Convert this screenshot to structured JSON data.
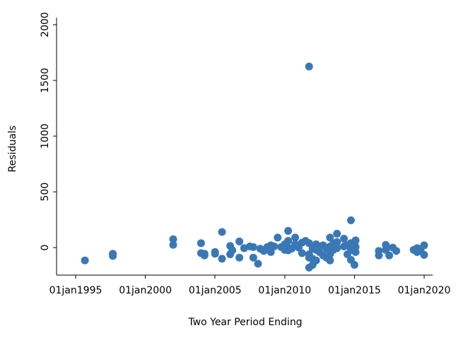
{
  "chart_data": {
    "type": "scatter",
    "xlabel": "Two Year Period Ending",
    "ylabel": "Residuals",
    "x_is_date": true,
    "xlim": [
      "1994-01-01",
      "2020-06-01"
    ],
    "ylim": [
      -250,
      2100
    ],
    "x_ticks": [
      {
        "date": "1995-01-01",
        "label": "01jan1995"
      },
      {
        "date": "2000-01-01",
        "label": "01jan2000"
      },
      {
        "date": "2005-01-01",
        "label": "01jan2005"
      },
      {
        "date": "2010-01-01",
        "label": "01jan2010"
      },
      {
        "date": "2015-01-01",
        "label": "01jan2015"
      },
      {
        "date": "2020-01-01",
        "label": "01jan2020"
      }
    ],
    "y_ticks": [
      {
        "value": 0,
        "label": "0"
      },
      {
        "value": 500,
        "label": "500"
      },
      {
        "value": 1000,
        "label": "1000"
      },
      {
        "value": 1500,
        "label": "1500"
      },
      {
        "value": 2000,
        "label": "2000"
      }
    ],
    "grid": false,
    "legend": "none",
    "marker_color": "#3a78b5",
    "points": [
      {
        "x": "1995-09-01",
        "y": -115
      },
      {
        "x": "1997-09-01",
        "y": -55
      },
      {
        "x": "1997-09-01",
        "y": -75
      },
      {
        "x": "2001-12-31",
        "y": 75
      },
      {
        "x": "2001-12-31",
        "y": 25
      },
      {
        "x": "2003-12-31",
        "y": 40
      },
      {
        "x": "2003-12-31",
        "y": -50
      },
      {
        "x": "2004-03-31",
        "y": -70
      },
      {
        "x": "2004-03-31",
        "y": -55
      },
      {
        "x": "2004-12-31",
        "y": -40
      },
      {
        "x": "2004-12-31",
        "y": -55
      },
      {
        "x": "2005-06-30",
        "y": 140
      },
      {
        "x": "2005-06-30",
        "y": -100
      },
      {
        "x": "2006-01-31",
        "y": 15
      },
      {
        "x": "2006-01-31",
        "y": -60
      },
      {
        "x": "2006-03-31",
        "y": -25
      },
      {
        "x": "2006-09-30",
        "y": 55
      },
      {
        "x": "2006-09-30",
        "y": -90
      },
      {
        "x": "2007-01-31",
        "y": -5
      },
      {
        "x": "2007-06-30",
        "y": 10
      },
      {
        "x": "2007-09-30",
        "y": 5
      },
      {
        "x": "2007-09-30",
        "y": -90
      },
      {
        "x": "2008-01-31",
        "y": -145
      },
      {
        "x": "2008-03-31",
        "y": -10
      },
      {
        "x": "2008-06-30",
        "y": -30
      },
      {
        "x": "2008-09-30",
        "y": 5
      },
      {
        "x": "2008-12-31",
        "y": 20
      },
      {
        "x": "2008-12-31",
        "y": -40
      },
      {
        "x": "2009-03-31",
        "y": 10
      },
      {
        "x": "2009-06-30",
        "y": 90
      },
      {
        "x": "2009-09-30",
        "y": 5
      },
      {
        "x": "2009-12-31",
        "y": -5
      },
      {
        "x": "2009-12-31",
        "y": -20
      },
      {
        "x": "2009-12-31",
        "y": 30
      },
      {
        "x": "2010-03-31",
        "y": 150
      },
      {
        "x": "2010-03-31",
        "y": 60
      },
      {
        "x": "2010-03-31",
        "y": 0
      },
      {
        "x": "2010-03-31",
        "y": -25
      },
      {
        "x": "2010-06-30",
        "y": -10
      },
      {
        "x": "2010-09-30",
        "y": 90
      },
      {
        "x": "2010-09-30",
        "y": 30
      },
      {
        "x": "2010-12-31",
        "y": 20
      },
      {
        "x": "2010-12-31",
        "y": 0
      },
      {
        "x": "2011-03-31",
        "y": 45
      },
      {
        "x": "2011-03-31",
        "y": -50
      },
      {
        "x": "2011-06-30",
        "y": 60
      },
      {
        "x": "2011-09-30",
        "y": 1625
      },
      {
        "x": "2011-09-30",
        "y": 40
      },
      {
        "x": "2011-09-30",
        "y": -60
      },
      {
        "x": "2011-09-30",
        "y": -90
      },
      {
        "x": "2011-09-30",
        "y": -180
      },
      {
        "x": "2011-12-31",
        "y": -155
      },
      {
        "x": "2011-12-31",
        "y": -100
      },
      {
        "x": "2011-12-31",
        "y": -10
      },
      {
        "x": "2012-03-31",
        "y": 30
      },
      {
        "x": "2012-03-31",
        "y": -20
      },
      {
        "x": "2012-03-31",
        "y": -115
      },
      {
        "x": "2012-06-30",
        "y": 10
      },
      {
        "x": "2012-06-30",
        "y": -40
      },
      {
        "x": "2012-09-30",
        "y": 20
      },
      {
        "x": "2012-09-30",
        "y": -70
      },
      {
        "x": "2012-12-31",
        "y": -10
      },
      {
        "x": "2012-12-31",
        "y": -90
      },
      {
        "x": "2013-03-31",
        "y": 90
      },
      {
        "x": "2013-03-31",
        "y": 10
      },
      {
        "x": "2013-03-31",
        "y": -60
      },
      {
        "x": "2013-03-31",
        "y": -115
      },
      {
        "x": "2013-06-30",
        "y": 40
      },
      {
        "x": "2013-06-30",
        "y": -20
      },
      {
        "x": "2013-09-30",
        "y": 125
      },
      {
        "x": "2013-09-30",
        "y": 50
      },
      {
        "x": "2013-09-30",
        "y": -5
      },
      {
        "x": "2014-03-31",
        "y": 80
      },
      {
        "x": "2014-03-31",
        "y": 10
      },
      {
        "x": "2014-06-30",
        "y": 20
      },
      {
        "x": "2014-06-30",
        "y": -60
      },
      {
        "x": "2014-09-30",
        "y": 245
      },
      {
        "x": "2014-09-30",
        "y": 40
      },
      {
        "x": "2014-09-30",
        "y": -20
      },
      {
        "x": "2014-09-30",
        "y": -110
      },
      {
        "x": "2014-12-31",
        "y": 30
      },
      {
        "x": "2014-12-31",
        "y": -30
      },
      {
        "x": "2014-12-31",
        "y": -155
      },
      {
        "x": "2015-01-31",
        "y": 65
      },
      {
        "x": "2015-01-31",
        "y": 5
      },
      {
        "x": "2015-01-31",
        "y": -40
      },
      {
        "x": "2016-09-30",
        "y": -30
      },
      {
        "x": "2016-09-30",
        "y": -70
      },
      {
        "x": "2017-03-31",
        "y": 25
      },
      {
        "x": "2017-03-31",
        "y": -20
      },
      {
        "x": "2017-06-30",
        "y": -70
      },
      {
        "x": "2017-09-30",
        "y": 0
      },
      {
        "x": "2017-12-31",
        "y": -30
      },
      {
        "x": "2019-03-31",
        "y": -20
      },
      {
        "x": "2019-06-30",
        "y": -5
      },
      {
        "x": "2019-06-30",
        "y": -40
      },
      {
        "x": "2019-09-30",
        "y": -30
      },
      {
        "x": "2019-12-31",
        "y": 20
      },
      {
        "x": "2019-12-31",
        "y": -65
      }
    ]
  }
}
